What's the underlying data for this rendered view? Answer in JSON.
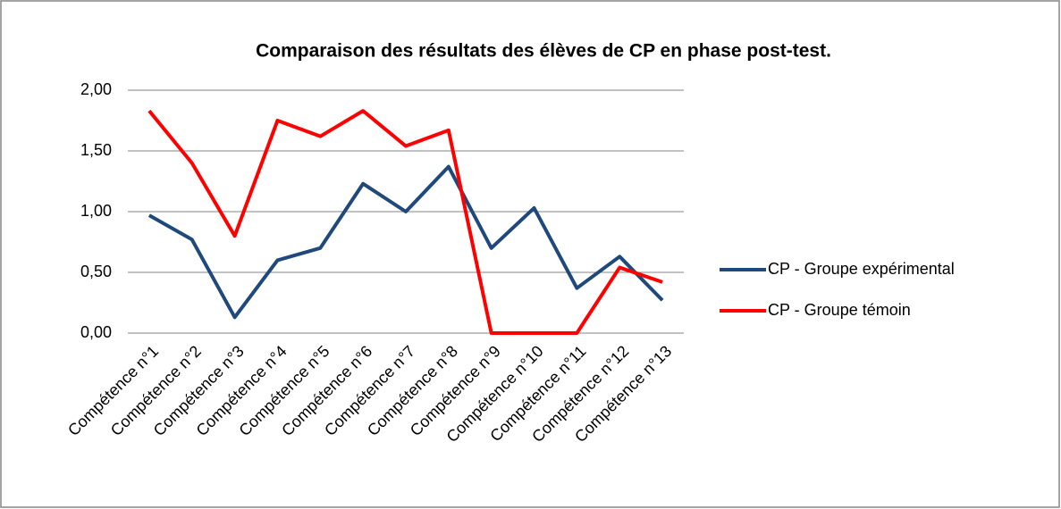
{
  "chart_data": {
    "type": "line",
    "title": "Comparaison des résultats des élèves de CP en phase post-test.",
    "categories": [
      "Compétence n°1",
      "Compétence n°2",
      "Compétence n°3",
      "Compétence n°4",
      "Compétence n°5",
      "Compétence n°6",
      "Compétence n°7",
      "Compétence n°8",
      "Compétence n°9",
      "Compétence n°10",
      "Compétence n°11",
      "Compétence n°12",
      "Compétence n°13"
    ],
    "series": [
      {
        "name": "CP - Groupe expérimental",
        "color": "#1f497d",
        "values": [
          0.97,
          0.77,
          0.13,
          0.6,
          0.7,
          1.23,
          1.0,
          1.37,
          0.7,
          1.03,
          0.37,
          0.63,
          0.27
        ]
      },
      {
        "name": "CP - Groupe témoin",
        "color": "#ff0000",
        "values": [
          1.83,
          1.4,
          0.8,
          1.75,
          1.62,
          1.83,
          1.54,
          1.67,
          0,
          0,
          0,
          0.54,
          0.42
        ]
      }
    ],
    "ylim": [
      0,
      2
    ],
    "yticks": [
      {
        "value": 0,
        "label": "0,00"
      },
      {
        "value": 0.5,
        "label": "0,50"
      },
      {
        "value": 1,
        "label": "1,00"
      },
      {
        "value": 1.5,
        "label": "1,50"
      },
      {
        "value": 2,
        "label": "2,00"
      }
    ],
    "grid": true,
    "legend": "right"
  }
}
